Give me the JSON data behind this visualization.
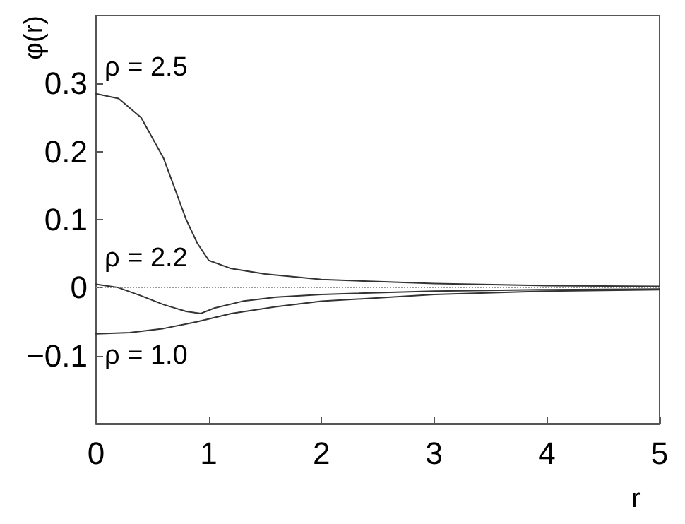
{
  "chart_data": {
    "type": "line",
    "xlabel": "r",
    "ylabel": "φ(r)",
    "xlim": [
      0,
      5
    ],
    "ylim": [
      -0.2,
      0.4
    ],
    "xticks": [
      0,
      1,
      2,
      3,
      4,
      5
    ],
    "yticks": [
      -0.1,
      0,
      0.1,
      0.2,
      0.3
    ],
    "grid": false,
    "legend": false,
    "marker": "none",
    "line_style": "solid",
    "ref_lines": [
      {
        "axis": "y",
        "value": 0,
        "color": "#999999",
        "line_style": "dotted"
      }
    ],
    "series": [
      {
        "name": "ρ = 2.5",
        "color": "#333333",
        "x": [
          0,
          0.2,
          0.4,
          0.6,
          0.8,
          0.9,
          1.0,
          1.2,
          1.5,
          2,
          3,
          4,
          5
        ],
        "values": [
          0.285,
          0.278,
          0.25,
          0.19,
          0.1,
          0.065,
          0.04,
          0.028,
          0.02,
          0.012,
          0.006,
          0.003,
          0.002
        ]
      },
      {
        "name": "ρ = 2.2",
        "color": "#333333",
        "x": [
          0,
          0.2,
          0.4,
          0.6,
          0.8,
          0.93,
          1.05,
          1.3,
          1.6,
          2,
          3,
          4,
          5
        ],
        "values": [
          0.005,
          0.0,
          -0.012,
          -0.025,
          -0.035,
          -0.038,
          -0.03,
          -0.02,
          -0.014,
          -0.01,
          -0.005,
          -0.003,
          -0.002
        ]
      },
      {
        "name": "ρ = 1.0",
        "color": "#333333",
        "x": [
          0,
          0.3,
          0.6,
          0.9,
          1.2,
          1.6,
          2,
          3,
          4,
          5
        ],
        "values": [
          -0.068,
          -0.066,
          -0.06,
          -0.05,
          -0.038,
          -0.028,
          -0.02,
          -0.01,
          -0.005,
          -0.003
        ]
      }
    ]
  }
}
